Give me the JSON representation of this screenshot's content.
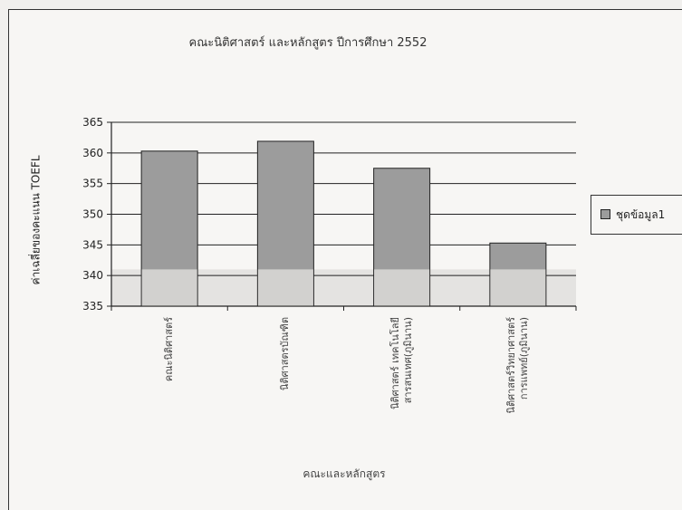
{
  "chart_data": {
    "type": "bar",
    "title": "คณะนิติศาสตร์ และหลักสูตร ปีการศึกษา 2552",
    "ylabel": "ค่าเฉลี่ยของคะแนน TOEFL",
    "xlabel": "คณะและหลักสูตร",
    "categories": [
      [
        "คณะนิติศาสตร์"
      ],
      [
        "นิติศาสตรบัณฑิต"
      ],
      [
        "นิติศาสตร์ เทคโนโลยี",
        "สารสนเทศ(ภูมินาน)"
      ],
      [
        "นิติศาสตร์วิทยาศาสตร์",
        "การแพทย์(ภูมินาน)"
      ]
    ],
    "series": [
      {
        "name": "ชุดข้อมูล1",
        "values": [
          360.3,
          361.9,
          357.5,
          345.3
        ]
      }
    ],
    "ylim": [
      335,
      365
    ],
    "yticks": [
      "335",
      "340",
      "345",
      "350",
      "355",
      "360",
      "365"
    ],
    "grid": true,
    "legend_position": "right",
    "colors": {
      "bar": "#9c9c9c",
      "bar_edge": "#222222",
      "grid": "#222222"
    }
  }
}
